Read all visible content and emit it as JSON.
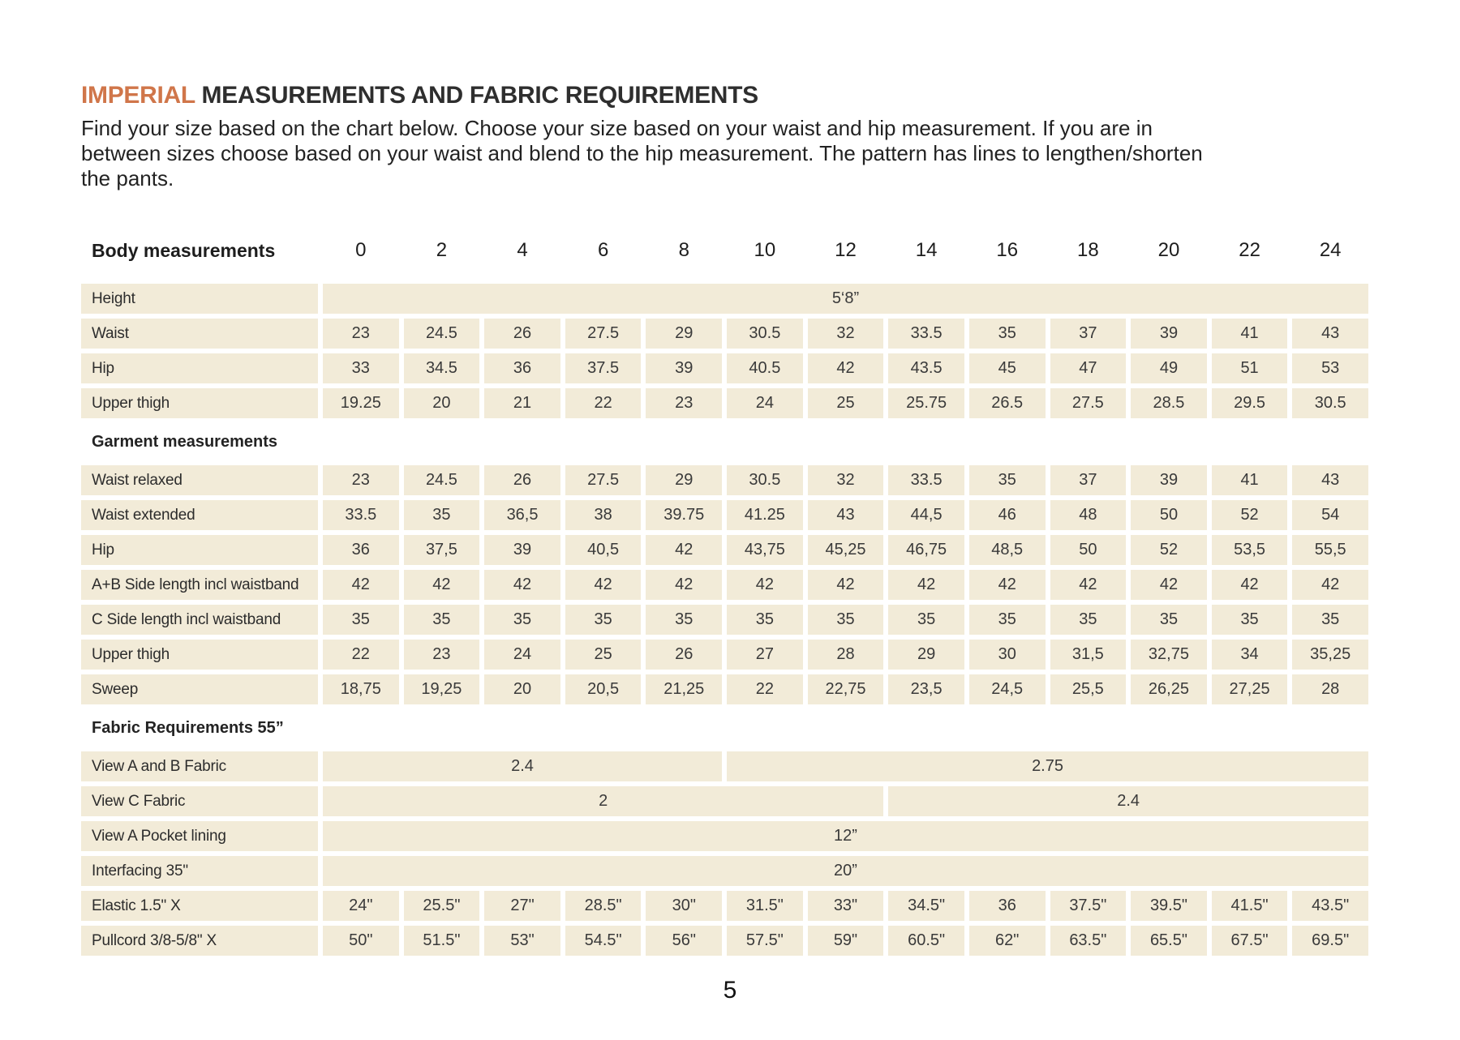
{
  "page_number": "5",
  "title": {
    "highlight": "IMPERIAL",
    "rest": " MEASUREMENTS AND FABRIC REQUIREMENTS"
  },
  "intro": "Find your size based on the chart below. Choose your size based on your waist and hip measurement. If you are in\nbetween sizes choose based on your waist and blend to the hip measurement. The pattern has lines to lengthen/shorten\nthe pants.",
  "colors": {
    "accent": "#d0764a",
    "cell_bg": "#f2ebd8"
  },
  "table": {
    "header_label": "Body measurements",
    "sizes": [
      "0",
      "2",
      "4",
      "6",
      "8",
      "10",
      "12",
      "14",
      "16",
      "18",
      "20",
      "22",
      "24"
    ],
    "rows": [
      {
        "type": "full",
        "label": "Height",
        "value": "5‘8”"
      },
      {
        "type": "cells",
        "label": "Waist",
        "values": [
          "23",
          "24.5",
          "26",
          "27.5",
          "29",
          "30.5",
          "32",
          "33.5",
          "35",
          "37",
          "39",
          "41",
          "43"
        ]
      },
      {
        "type": "cells",
        "label": "Hip",
        "values": [
          "33",
          "34.5",
          "36",
          "37.5",
          "39",
          "40.5",
          "42",
          "43.5",
          "45",
          "47",
          "49",
          "51",
          "53"
        ]
      },
      {
        "type": "cells",
        "label": "Upper thigh",
        "values": [
          "19.25",
          "20",
          "21",
          "22",
          "23",
          "24",
          "25",
          "25.75",
          "26.5",
          "27.5",
          "28.5",
          "29.5",
          "30.5"
        ]
      },
      {
        "type": "section",
        "label": "Garment measurements"
      },
      {
        "type": "cells",
        "label": "Waist relaxed",
        "values": [
          "23",
          "24.5",
          "26",
          "27.5",
          "29",
          "30.5",
          "32",
          "33.5",
          "35",
          "37",
          "39",
          "41",
          "43"
        ]
      },
      {
        "type": "cells",
        "label": "Waist extended",
        "values": [
          "33.5",
          "35",
          "36,5",
          "38",
          "39.75",
          "41.25",
          "43",
          "44,5",
          "46",
          "48",
          "50",
          "52",
          "54"
        ]
      },
      {
        "type": "cells",
        "label": "Hip",
        "values": [
          "36",
          "37,5",
          "39",
          "40,5",
          "42",
          "43,75",
          "45,25",
          "46,75",
          "48,5",
          "50",
          "52",
          "53,5",
          "55,5"
        ]
      },
      {
        "type": "cells",
        "label": "A+B Side length incl waistband",
        "values": [
          "42",
          "42",
          "42",
          "42",
          "42",
          "42",
          "42",
          "42",
          "42",
          "42",
          "42",
          "42",
          "42"
        ]
      },
      {
        "type": "cells",
        "label": "C Side length incl waistband",
        "values": [
          "35",
          "35",
          "35",
          "35",
          "35",
          "35",
          "35",
          "35",
          "35",
          "35",
          "35",
          "35",
          "35"
        ]
      },
      {
        "type": "cells",
        "label": "Upper thigh",
        "values": [
          "22",
          "23",
          "24",
          "25",
          "26",
          "27",
          "28",
          "29",
          "30",
          "31,5",
          "32,75",
          "34",
          "35,25"
        ]
      },
      {
        "type": "cells",
        "label": "Sweep",
        "values": [
          "18,75",
          "19,25",
          "20",
          "20,5",
          "21,25",
          "22",
          "22,75",
          "23,5",
          "24,5",
          "25,5",
          "26,25",
          "27,25",
          "28"
        ]
      },
      {
        "type": "section",
        "label": "Fabric Requirements 55”"
      },
      {
        "type": "spans",
        "label": "View A  and B Fabric",
        "spans": [
          {
            "value": "2.4",
            "cols": 5
          },
          {
            "value": "2.75",
            "cols": 8
          }
        ]
      },
      {
        "type": "spans",
        "label": "View C Fabric",
        "spans": [
          {
            "value": "2",
            "cols": 7
          },
          {
            "value": "2.4",
            "cols": 6
          }
        ]
      },
      {
        "type": "full",
        "label": "View A Pocket lining",
        "value": "12”"
      },
      {
        "type": "full",
        "label": "Interfacing 35\"",
        "value": "20”"
      },
      {
        "type": "cells",
        "label": "Elastic  1.5\" X",
        "values": [
          "24\"",
          "25.5\"",
          "27\"",
          "28.5\"",
          "30\"",
          "31.5\"",
          "33\"",
          "34.5\"",
          "36",
          "37.5\"",
          "39.5\"",
          "41.5\"",
          "43.5\""
        ]
      },
      {
        "type": "cells",
        "label": "Pullcord 3/8-5/8\" X",
        "values": [
          "50\"",
          "51.5\"",
          "53\"",
          "54.5\"",
          "56\"",
          "57.5\"",
          "59\"",
          "60.5\"",
          "62\"",
          "63.5\"",
          "65.5\"",
          "67.5\"",
          "69.5\""
        ]
      }
    ]
  }
}
